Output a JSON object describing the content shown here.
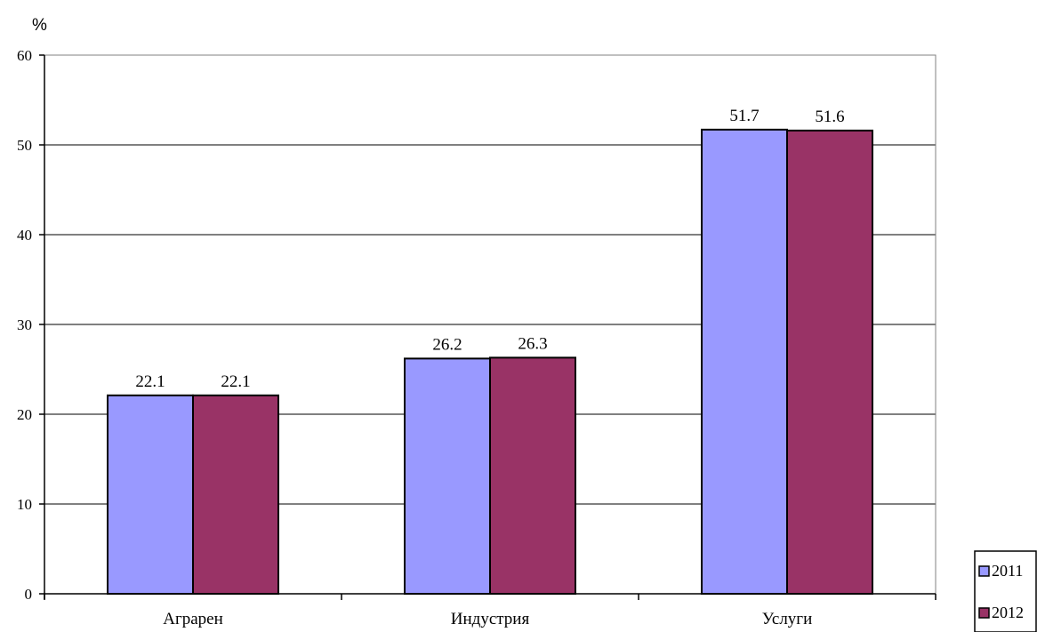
{
  "chart_data": {
    "type": "bar",
    "ylabel": "%",
    "categories": [
      "Аграрен",
      "Индустрия",
      "Услуги"
    ],
    "series": [
      {
        "name": "2011",
        "values": [
          22.1,
          26.2,
          51.7
        ],
        "color": "#9999ff"
      },
      {
        "name": "2012",
        "values": [
          22.1,
          26.3,
          51.6
        ],
        "color": "#993366"
      }
    ],
    "ylim": [
      0,
      60
    ],
    "yticks": [
      0,
      10,
      20,
      30,
      40,
      50,
      60
    ],
    "grid": true,
    "legend": "bottom-right",
    "data_labels": true
  }
}
